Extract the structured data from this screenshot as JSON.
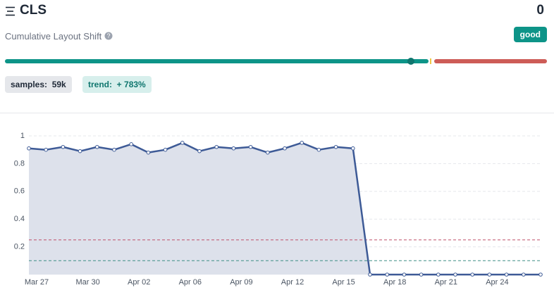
{
  "header": {
    "title": "CLS",
    "value": "0",
    "subtitle": "Cumulative Layout Shift",
    "status": "good",
    "samples_label": "samples:",
    "samples": "59k",
    "trend_label": "trend:",
    "trend": "+ 783%"
  },
  "chart_data": {
    "type": "area",
    "categories": [
      "Mar 27",
      null,
      null,
      "Mar 30",
      null,
      null,
      "Apr 02",
      null,
      null,
      "Apr 06",
      null,
      null,
      "Apr 09",
      null,
      null,
      "Apr 12",
      null,
      null,
      "Apr 15",
      null,
      null,
      "Apr 18",
      null,
      null,
      "Apr 21",
      null,
      null,
      "Apr 24",
      null,
      null,
      null
    ],
    "values": [
      0.91,
      0.9,
      0.92,
      0.89,
      0.92,
      0.9,
      0.94,
      0.88,
      0.9,
      0.95,
      0.89,
      0.92,
      0.91,
      0.92,
      0.88,
      0.91,
      0.95,
      0.9,
      0.92,
      0.91,
      0,
      0,
      0,
      0,
      0,
      0,
      0,
      0,
      0,
      0,
      0
    ],
    "color": "#3d5a96",
    "fill": "#dde1eb",
    "ylim": [
      0,
      1
    ],
    "yticks": [
      0.2,
      0.4,
      0.6,
      0.8,
      1
    ],
    "grid": true,
    "thresholds": [
      {
        "value": 0.25,
        "color": "#c0506a"
      },
      {
        "value": 0.1,
        "color": "#3f8f86"
      }
    ]
  }
}
